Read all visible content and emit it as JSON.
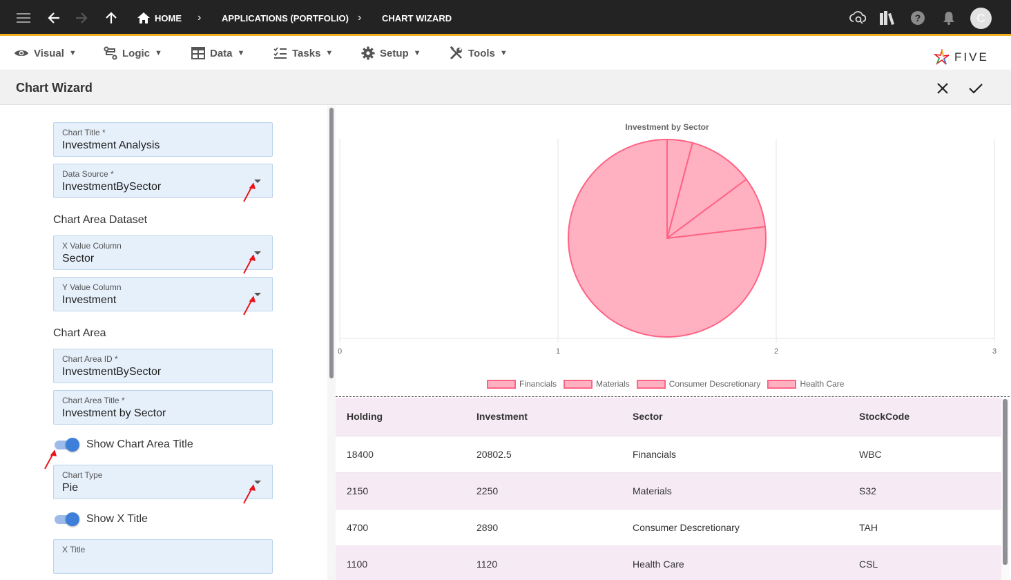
{
  "topbar": {
    "breadcrumbs": [
      {
        "label": "HOME"
      },
      {
        "label": "APPLICATIONS (PORTFOLIO)"
      },
      {
        "label": "CHART WIZARD"
      }
    ],
    "avatar_initial": "C"
  },
  "menubar": {
    "items": [
      {
        "label": "Visual",
        "icon": "eye-icon"
      },
      {
        "label": "Logic",
        "icon": "logic-flow-icon"
      },
      {
        "label": "Data",
        "icon": "table-icon"
      },
      {
        "label": "Tasks",
        "icon": "checklist-icon"
      },
      {
        "label": "Setup",
        "icon": "gear-icon"
      },
      {
        "label": "Tools",
        "icon": "tools-icon"
      }
    ],
    "brand": "FIVE"
  },
  "page": {
    "title": "Chart Wizard"
  },
  "form": {
    "chart_title": {
      "label": "Chart Title *",
      "value": "Investment Analysis"
    },
    "data_source": {
      "label": "Data Source *",
      "value": "InvestmentBySector"
    },
    "dataset_section": "Chart Area Dataset",
    "x_value_column": {
      "label": "X Value Column",
      "value": "Sector"
    },
    "y_value_column": {
      "label": "Y Value Column",
      "value": "Investment"
    },
    "chart_area_section": "Chart Area",
    "chart_area_id": {
      "label": "Chart Area ID *",
      "value": "InvestmentBySector"
    },
    "chart_area_title": {
      "label": "Chart Area Title *",
      "value": "Investment by Sector"
    },
    "show_chart_area_title": {
      "label": "Show Chart Area Title",
      "on": true
    },
    "chart_type": {
      "label": "Chart Type",
      "value": "Pie"
    },
    "show_x_title": {
      "label": "Show X Title",
      "on": true
    },
    "x_title": {
      "label": "X Title",
      "value": ""
    }
  },
  "chart_data": {
    "type": "pie",
    "title": "Investment by Sector",
    "categories": [
      "Financials",
      "Materials",
      "Consumer Descretionary",
      "Health Care"
    ],
    "values": [
      20802.5,
      2250,
      2890,
      1120
    ],
    "x_ticks": [
      "0",
      "1",
      "2",
      "3"
    ],
    "xlim": [
      0,
      3
    ],
    "grid": true,
    "legend_position": "bottom",
    "colors": {
      "fill": "#ffb1c1",
      "border": "#ff6384"
    }
  },
  "table": {
    "columns": [
      "Holding",
      "Investment",
      "Sector",
      "StockCode"
    ],
    "rows": [
      [
        "18400",
        "20802.5",
        "Financials",
        "WBC"
      ],
      [
        "2150",
        "2250",
        "Materials",
        "S32"
      ],
      [
        "4700",
        "2890",
        "Consumer Descretionary",
        "TAH"
      ],
      [
        "1100",
        "1120",
        "Health Care",
        "CSL"
      ]
    ]
  },
  "colors": {
    "topbar": "#232323",
    "accent": "#f2b01e",
    "field_bg": "#e6f0fb",
    "toggle_on": "#3d7fd9",
    "row_alt": "#f6ebf5",
    "annotation_arrow": "#e8151b"
  }
}
